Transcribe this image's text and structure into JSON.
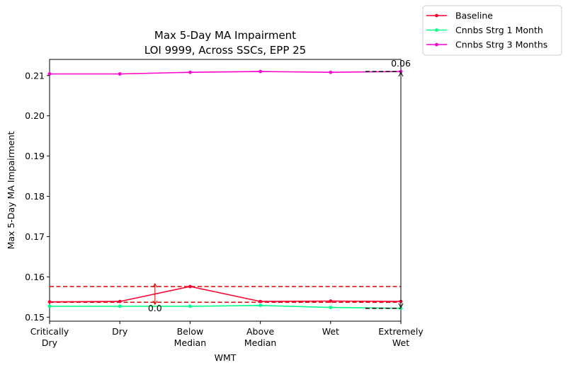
{
  "chart_data": {
    "type": "line",
    "title_line1": "Max 5-Day MA Impairment",
    "title_line2": "LOI 9999, Across SSCs, EPP 25",
    "xlabel": "WMT",
    "ylabel": "Max 5-Day MA Impairment",
    "categories": [
      [
        "Critically",
        "Dry"
      ],
      [
        "Dry"
      ],
      [
        "Below",
        "Median"
      ],
      [
        "Above",
        "Median"
      ],
      [
        "Wet"
      ],
      [
        "Extremely",
        "Wet"
      ]
    ],
    "ylim": [
      0.149,
      0.214
    ],
    "yticks": [
      0.15,
      0.16,
      0.17,
      0.18,
      0.19,
      0.2,
      0.21
    ],
    "ytick_labels": [
      "0.15",
      "0.16",
      "0.17",
      "0.18",
      "0.19",
      "0.20",
      "0.21"
    ],
    "series": [
      {
        "name": "Baseline",
        "color": "#ff0033",
        "values": [
          0.1538,
          0.1539,
          0.1576,
          0.1539,
          0.154,
          0.1539
        ]
      },
      {
        "name": "Cnnbs Strg 1 Month",
        "color": "#00ff88",
        "values": [
          0.1527,
          0.1527,
          0.1527,
          0.1529,
          0.1524,
          0.1522
        ]
      },
      {
        "name": "Cnnbs Strg 3 Months",
        "color": "#ff00cc",
        "values": [
          0.2104,
          0.2104,
          0.2108,
          0.211,
          0.2108,
          0.211
        ]
      }
    ],
    "baseline_band": {
      "upper": 0.1576,
      "lower": 0.1537,
      "color": "#dd0000"
    },
    "baseline_arrow": {
      "from": 0.1539,
      "to": 0.1576,
      "x_between": [
        1,
        2
      ],
      "label": "0.0"
    },
    "range_annotation": {
      "label": "0.06",
      "top": 0.211,
      "bottom": 0.1522,
      "x_index": 5
    },
    "legend_position": "outside-top-right",
    "grid": false
  }
}
